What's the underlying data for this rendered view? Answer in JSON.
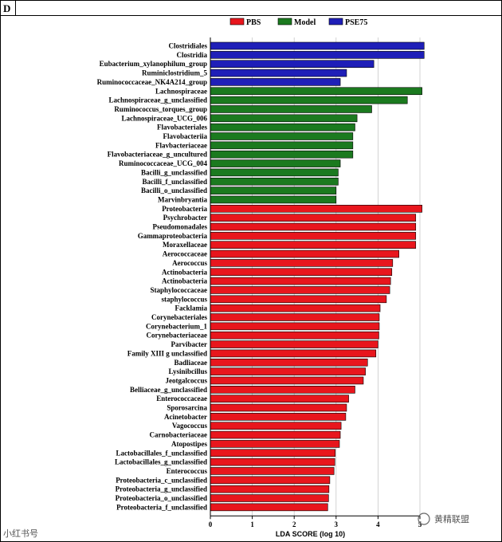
{
  "panel_label": "D",
  "watermark_left": "小红书号",
  "watermark_right": "黄精联盟",
  "chart_data": {
    "type": "bar",
    "orientation": "horizontal",
    "title": "",
    "xlabel": "LDA SCORE (log 10)",
    "ylabel": "",
    "xlim": [
      0,
      5
    ],
    "xticks": [
      0,
      1,
      2,
      3,
      4,
      5
    ],
    "grid": "vertical",
    "legend": {
      "position": "top-center",
      "entries": [
        "PBS",
        "Model",
        "PSE75"
      ]
    },
    "colors": {
      "PBS": "#e8161d",
      "Model": "#1b7a1f",
      "PSE75": "#1f1fb8"
    },
    "categories": [
      "Clostridiales",
      "Clostridia",
      "Eubacterium_xylanophilum_group",
      "Ruminiclostridium_5",
      "Ruminococcaceae_NK4A214_group",
      "Lachnospiraceae",
      "Lachnospiraceae_g_unclassified",
      "Ruminococcus_torques_group",
      "Lachnospiraceae_UCG_006",
      "Flavobacteriales",
      "Flavobacteriia",
      "Flavbacteriaceae",
      "Flavobacteriaceae_g_uncultured",
      "Ruminococcaceae_UCG_004",
      "Bacilli_g_unclassified",
      "Bacilli_f_unclassified",
      "Bacilli_o_unclassified",
      "Marvinbryantia",
      "Proteobacteria",
      "Psychrobacter",
      "Pseudomonadales",
      "Gammaproteobacteria",
      "Moraxellaceae",
      "Aerococcaceae",
      "Aerococcus",
      "Actinobacteria",
      "Actinobacteria",
      "Staphylococcaceae",
      "staphylococcus",
      "Facklamia",
      "Corynebacteriales",
      "Corynebacterium_1",
      "Corynebacteriaceae",
      "Parvibacter",
      "Family XIII g unclassified",
      "Badliaceae",
      "Lysinibcillus",
      "Jeotgalcoccus",
      "Belliaceae_g_unclassified",
      "Enterococcaceae",
      "Sporosarcina",
      "Acinetobacter",
      "Vagococcus",
      "Carnobacteriaceae",
      "Atopostipes",
      "Lactobacillales_f_unclassified",
      "Lactobacillales_g_unclassified",
      "Enterococcus",
      "Proteobacteria_c_unclassified",
      "Proteobacteria_g_unclassified",
      "Proteobacteria_o_unclassified",
      "Proteobacteria_f_unclassified"
    ],
    "groups": [
      "PSE75",
      "PSE75",
      "PSE75",
      "PSE75",
      "PSE75",
      "Model",
      "Model",
      "Model",
      "Model",
      "Model",
      "Model",
      "Model",
      "Model",
      "Model",
      "Model",
      "Model",
      "Model",
      "Model",
      "PBS",
      "PBS",
      "PBS",
      "PBS",
      "PBS",
      "PBS",
      "PBS",
      "PBS",
      "PBS",
      "PBS",
      "PBS",
      "PBS",
      "PBS",
      "PBS",
      "PBS",
      "PBS",
      "PBS",
      "PBS",
      "PBS",
      "PBS",
      "PBS",
      "PBS",
      "PBS",
      "PBS",
      "PBS",
      "PBS",
      "PBS",
      "PBS",
      "PBS",
      "PBS",
      "PBS",
      "PBS",
      "PBS",
      "PBS"
    ],
    "values": [
      5.1,
      5.1,
      3.9,
      3.25,
      3.1,
      5.05,
      4.7,
      3.85,
      3.5,
      3.45,
      3.4,
      3.4,
      3.4,
      3.1,
      3.05,
      3.05,
      3.0,
      3.0,
      5.05,
      4.9,
      4.9,
      4.9,
      4.9,
      4.5,
      4.35,
      4.33,
      4.3,
      4.28,
      4.2,
      4.05,
      4.03,
      4.03,
      4.02,
      4.0,
      3.95,
      3.75,
      3.7,
      3.65,
      3.45,
      3.3,
      3.25,
      3.23,
      3.12,
      3.1,
      3.08,
      2.98,
      2.97,
      2.95,
      2.85,
      2.83,
      2.82,
      2.8
    ]
  }
}
